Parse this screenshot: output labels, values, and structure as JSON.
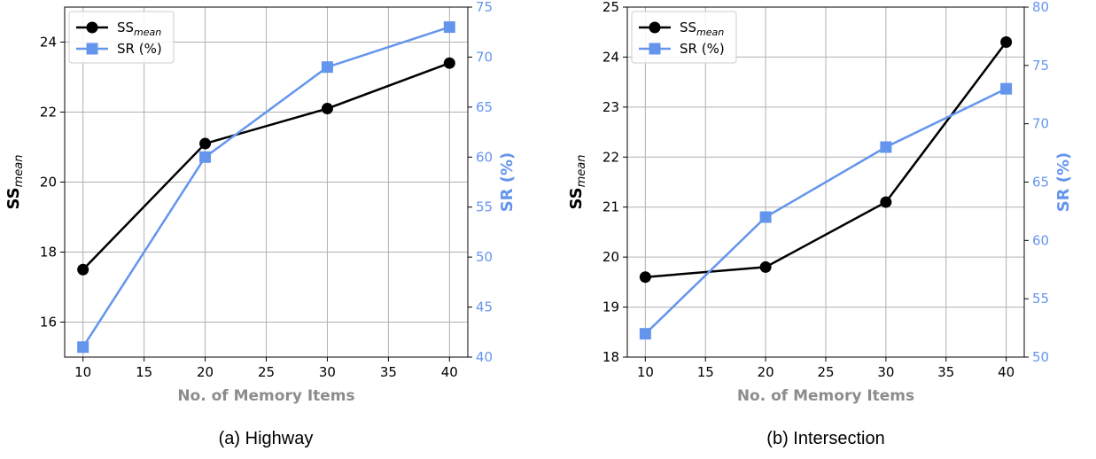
{
  "chart_data": [
    {
      "type": "line",
      "caption": "(a) Highway",
      "xlabel": "No. of Memory Items",
      "ylabel_left": {
        "main": "SS",
        "sub": "mean"
      },
      "ylabel_right": "SR (%)",
      "x": [
        10,
        20,
        30,
        40
      ],
      "xlim": [
        8.5,
        41.5
      ],
      "xticks": [
        10,
        15,
        20,
        25,
        30,
        35,
        40
      ],
      "ylim_left": [
        15,
        25
      ],
      "yticks_left": [
        16,
        18,
        20,
        22,
        24
      ],
      "ylim_right": [
        40,
        75
      ],
      "yticks_right": [
        40,
        45,
        50,
        55,
        60,
        65,
        70,
        75
      ],
      "grid": true,
      "legend": "top-left",
      "series": [
        {
          "name": {
            "main": "SS",
            "sub": "mean"
          },
          "axis": "left",
          "values": [
            17.5,
            21.1,
            22.1,
            23.4
          ],
          "color": "#000000",
          "marker": "circle"
        },
        {
          "name": {
            "main": "SR (%)",
            "sub": ""
          },
          "axis": "right",
          "values": [
            41,
            60,
            69,
            73
          ],
          "color": "#6495ed",
          "marker": "square"
        }
      ]
    },
    {
      "type": "line",
      "caption": "(b) Intersection",
      "xlabel": "No. of Memory Items",
      "ylabel_left": {
        "main": "SS",
        "sub": "mean"
      },
      "ylabel_right": "SR (%)",
      "x": [
        10,
        20,
        30,
        40
      ],
      "xlim": [
        8.5,
        41.5
      ],
      "xticks": [
        10,
        15,
        20,
        25,
        30,
        35,
        40
      ],
      "ylim_left": [
        18,
        25
      ],
      "yticks_left": [
        18,
        19,
        20,
        21,
        22,
        23,
        24,
        25
      ],
      "ylim_right": [
        50,
        80
      ],
      "yticks_right": [
        50,
        55,
        60,
        65,
        70,
        75,
        80
      ],
      "grid": true,
      "legend": "top-left",
      "series": [
        {
          "name": {
            "main": "SS",
            "sub": "mean"
          },
          "axis": "left",
          "values": [
            19.6,
            19.8,
            21.1,
            24.3
          ],
          "color": "#000000",
          "marker": "circle"
        },
        {
          "name": {
            "main": "SR (%)",
            "sub": ""
          },
          "axis": "right",
          "values": [
            52,
            62,
            68,
            73
          ],
          "color": "#6495ed",
          "marker": "square"
        }
      ]
    }
  ]
}
